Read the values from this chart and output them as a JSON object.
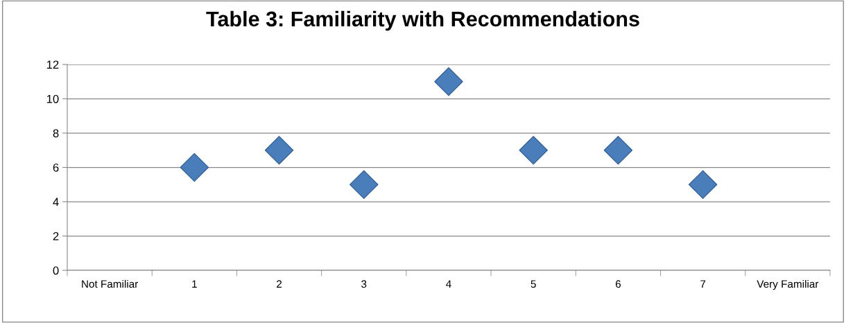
{
  "chart_data": {
    "type": "scatter",
    "title": "Table 3: Familiarity with Recommendations",
    "categories": [
      "Not Familiar",
      "1",
      "2",
      "3",
      "4",
      "5",
      "6",
      "7",
      "Very Familiar"
    ],
    "values": [
      null,
      6,
      7,
      5,
      11,
      7,
      7,
      5,
      null
    ],
    "color": "#4a7ebb",
    "marker": "diamond",
    "ylim": [
      0,
      12
    ],
    "yticks": [
      0,
      2,
      4,
      6,
      8,
      10,
      12
    ],
    "grid": "y",
    "legend": false
  }
}
